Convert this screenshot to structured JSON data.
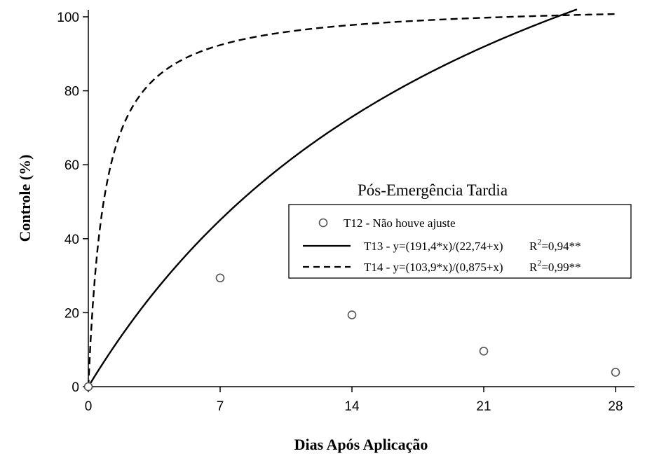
{
  "chart_data": {
    "type": "scatter",
    "xlabel": "Dias Após Aplicação",
    "ylabel": "Controle (%)",
    "xlim": [
      0,
      28
    ],
    "ylim": [
      0,
      100
    ],
    "x_ticks": [
      "0",
      "7",
      "14",
      "21",
      "28"
    ],
    "y_ticks": [
      "0",
      "20",
      "40",
      "60",
      "80",
      "100"
    ],
    "grid": false,
    "legend": {
      "title": "Pós-Emergência Tardia",
      "placement": "center-right",
      "entries": [
        {
          "series": "T12",
          "marker": "open-circle",
          "label": "T12 - Não houve ajuste",
          "r2_prefix": "",
          "r2_sup": "",
          "r2_suffix": ""
        },
        {
          "series": "T13",
          "line_style": "solid",
          "label": "T13 - y=(191,4*x)/(22,74+x)",
          "r2_prefix": "R",
          "r2_sup": "2",
          "r2_suffix": "=0,94**"
        },
        {
          "series": "T14",
          "line_style": "dashed",
          "label": "T14 - y=(103,9*x)/(0,875+x)",
          "r2_prefix": "R",
          "r2_sup": "2",
          "r2_suffix": "=0,99**"
        }
      ]
    },
    "series": [
      {
        "name": "T12 - Não houve ajuste",
        "kind": "points",
        "marker": "open-circle",
        "color": "#555555",
        "x": [
          0,
          7,
          14,
          21,
          28
        ],
        "y": [
          0,
          29.4,
          19.4,
          9.6,
          3.9
        ]
      },
      {
        "name": "T13 - y=(191,4*x)/(22,74+x)",
        "kind": "fitted-curve",
        "line_style": "solid",
        "color": "#000000",
        "a": 191.4,
        "b": 22.74,
        "x_range": [
          0,
          25.95
        ]
      },
      {
        "name": "T14 - y=(103,9*x)/(0,875+x)",
        "kind": "fitted-curve",
        "line_style": "dashed",
        "color": "#000000",
        "a": 103.9,
        "b": 0.875,
        "x_range": [
          0,
          28
        ]
      }
    ]
  }
}
